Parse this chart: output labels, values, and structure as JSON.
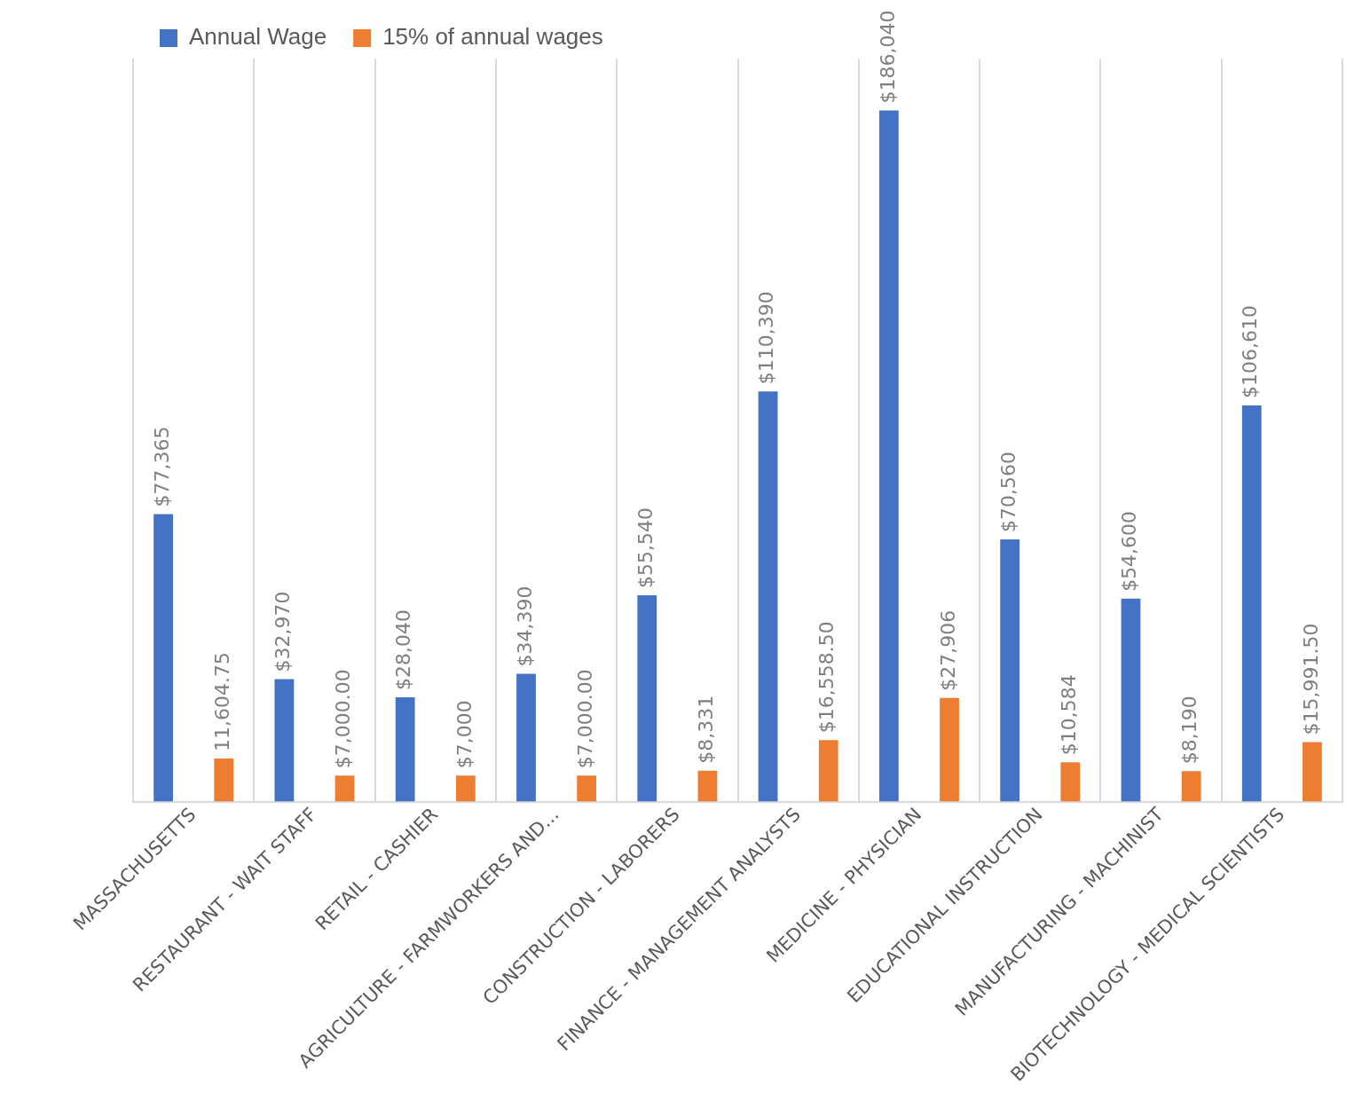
{
  "chart_data": {
    "type": "bar",
    "categories": [
      "MASSACHUSETTS",
      "RESTAURANT - WAIT STAFF",
      "RETAIL - CASHIER",
      "AGRICULTURE - FARMWORKERS AND...",
      "CONSTRUCTION - LABORERS",
      "FINANCE - MANAGEMENT ANALYSTS",
      "MEDICINE - PHYSICIAN",
      "EDUCATIONAL INSTRUCTION",
      "MANUFACTURING - MACHINIST",
      "BIOTECHNOLOGY - MEDICAL SCIENTISTS"
    ],
    "series": [
      {
        "name": "Annual Wage",
        "color": "#4472c4",
        "values": [
          77365,
          32970,
          28040,
          34390,
          55540,
          110390,
          186040,
          70560,
          54600,
          106610
        ],
        "value_labels": [
          "$77,365",
          "$32,970",
          "$28,040",
          "$34,390",
          "$55,540",
          "$110,390",
          "$186,040",
          "$70,560",
          "$54,600",
          "$106,610"
        ]
      },
      {
        "name": "15% of annual wages",
        "color": "#ed7d31",
        "values": [
          11604.75,
          7000,
          7000,
          7000,
          8331,
          16558.5,
          27906,
          10584,
          8190,
          15991.5
        ],
        "value_labels": [
          "11,604.75",
          "$7,000.00",
          "$7,000",
          "$7,000.00",
          "$8,331",
          "$16,558.50",
          "$27,906",
          "$10,584",
          "$8,190",
          "$15,991.50"
        ]
      }
    ],
    "ylim": [
      0,
      200000
    ],
    "tick_labels": "x",
    "grid": "x",
    "legend": "top left"
  }
}
